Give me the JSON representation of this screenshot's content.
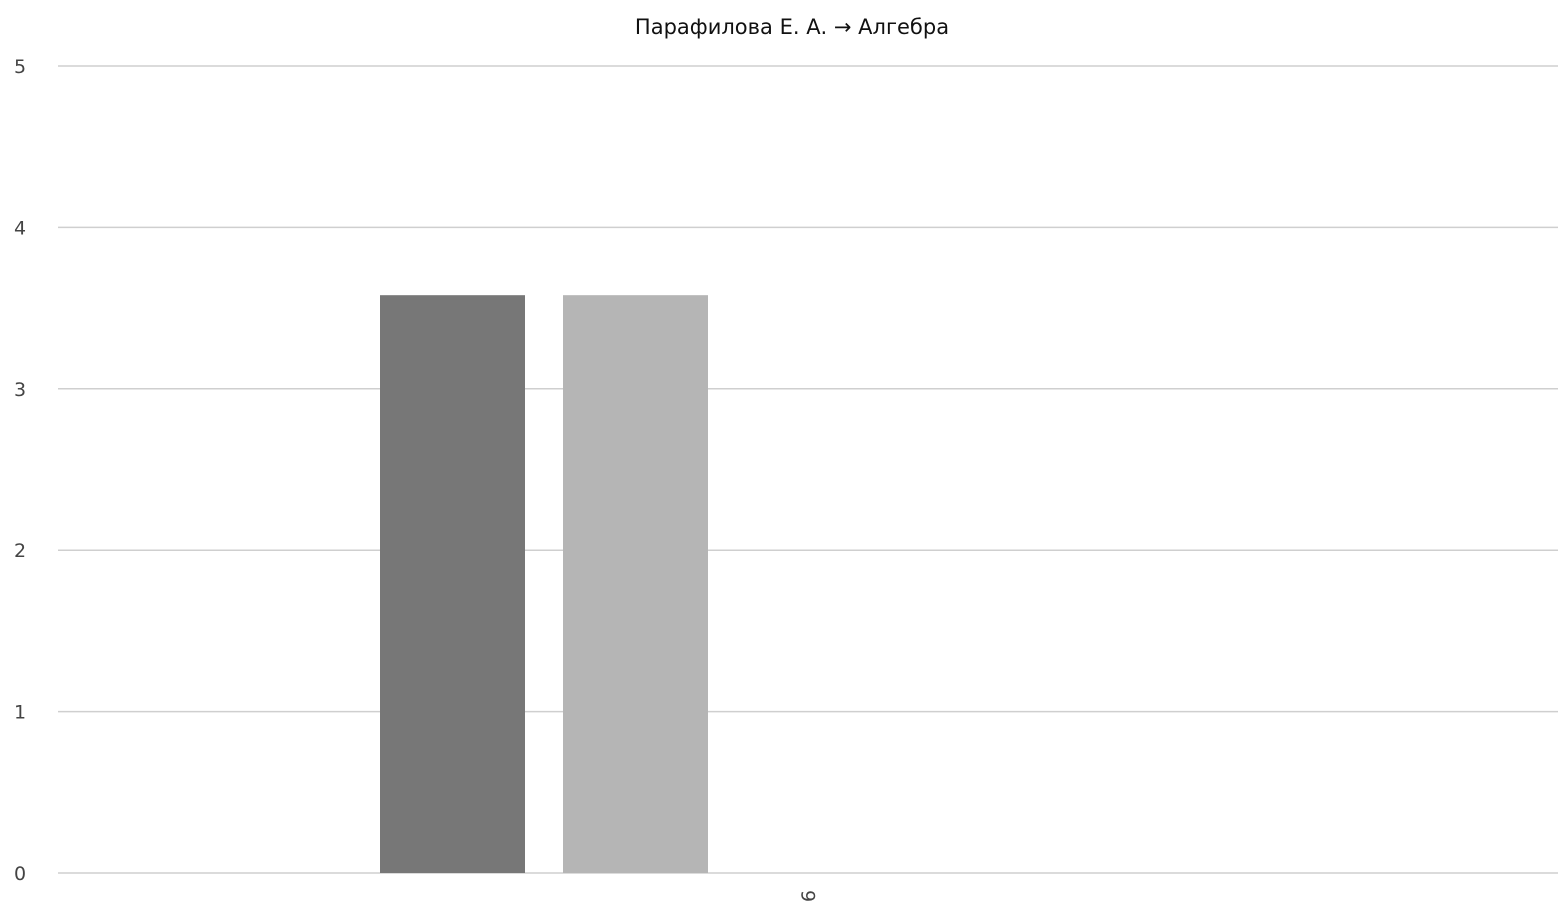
{
  "chart_data": {
    "type": "bar",
    "title": "Парафилова Е. А. → Алгебра",
    "xlabel": "",
    "ylabel": "",
    "categories": [
      "9"
    ],
    "series": [
      {
        "values": [
          3.58
        ],
        "color": "#777777"
      },
      {
        "values": [
          3.58
        ],
        "color": "#b5b5b5"
      }
    ],
    "ylim": [
      0,
      5
    ],
    "yticks": [
      "0",
      "1",
      "2",
      "3",
      "4",
      "5"
    ],
    "grid": true,
    "legend": "none"
  }
}
